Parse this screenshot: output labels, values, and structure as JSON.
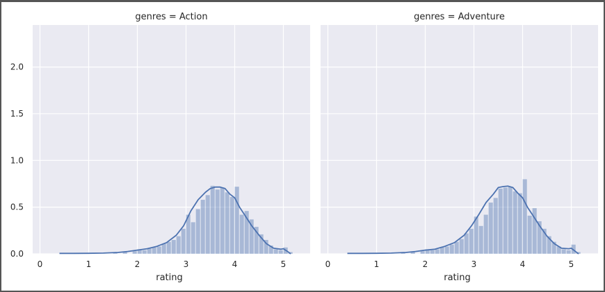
{
  "chart_data": {
    "type": "facet-histogram-kde",
    "facet_variable": "genres",
    "xlabel": "rating",
    "ylabel": "",
    "xlim": [
      -0.15,
      5.55
    ],
    "ylim": [
      0,
      2.45
    ],
    "xticks": [
      0,
      1,
      2,
      3,
      4,
      5
    ],
    "yticks": [
      0.0,
      0.5,
      1.0,
      1.5,
      2.0
    ],
    "grid": true,
    "style": "seaborn-darkgrid",
    "bin_width": 0.1,
    "colors": {
      "bar": "#4c72b0",
      "line": "#4c72b0",
      "background": "#eaeaf2",
      "grid": "#ffffff"
    },
    "facets": [
      {
        "title": "genres = Action",
        "bins": [
          {
            "x": 0.5,
            "y": 0.01
          },
          {
            "x": 0.6,
            "y": 0.01
          },
          {
            "x": 1.0,
            "y": 0.01
          },
          {
            "x": 1.5,
            "y": 0.02
          },
          {
            "x": 1.7,
            "y": 0.02
          },
          {
            "x": 1.9,
            "y": 0.03
          },
          {
            "x": 2.0,
            "y": 0.05
          },
          {
            "x": 2.1,
            "y": 0.04
          },
          {
            "x": 2.2,
            "y": 0.06
          },
          {
            "x": 2.3,
            "y": 0.07
          },
          {
            "x": 2.4,
            "y": 0.08
          },
          {
            "x": 2.5,
            "y": 0.11
          },
          {
            "x": 2.6,
            "y": 0.13
          },
          {
            "x": 2.7,
            "y": 0.15
          },
          {
            "x": 2.8,
            "y": 0.19
          },
          {
            "x": 2.9,
            "y": 0.27
          },
          {
            "x": 3.0,
            "y": 0.42
          },
          {
            "x": 3.1,
            "y": 0.34
          },
          {
            "x": 3.2,
            "y": 0.48
          },
          {
            "x": 3.3,
            "y": 0.58
          },
          {
            "x": 3.4,
            "y": 0.63
          },
          {
            "x": 3.5,
            "y": 0.73
          },
          {
            "x": 3.6,
            "y": 0.69
          },
          {
            "x": 3.7,
            "y": 0.71
          },
          {
            "x": 3.8,
            "y": 0.66
          },
          {
            "x": 3.9,
            "y": 0.61
          },
          {
            "x": 4.0,
            "y": 0.72
          },
          {
            "x": 4.1,
            "y": 0.42
          },
          {
            "x": 4.2,
            "y": 0.46
          },
          {
            "x": 4.3,
            "y": 0.37
          },
          {
            "x": 4.4,
            "y": 0.29
          },
          {
            "x": 4.5,
            "y": 0.21
          },
          {
            "x": 4.6,
            "y": 0.15
          },
          {
            "x": 4.7,
            "y": 0.09
          },
          {
            "x": 4.8,
            "y": 0.05
          },
          {
            "x": 4.9,
            "y": 0.04
          },
          {
            "x": 5.0,
            "y": 0.07
          },
          {
            "x": 5.1,
            "y": 0.02
          }
        ],
        "kde": [
          {
            "x": 0.4,
            "y": 0.005
          },
          {
            "x": 0.7,
            "y": 0.005
          },
          {
            "x": 1.0,
            "y": 0.006
          },
          {
            "x": 1.3,
            "y": 0.008
          },
          {
            "x": 1.6,
            "y": 0.015
          },
          {
            "x": 1.8,
            "y": 0.025
          },
          {
            "x": 2.0,
            "y": 0.04
          },
          {
            "x": 2.2,
            "y": 0.055
          },
          {
            "x": 2.4,
            "y": 0.08
          },
          {
            "x": 2.6,
            "y": 0.12
          },
          {
            "x": 2.8,
            "y": 0.2
          },
          {
            "x": 2.95,
            "y": 0.3
          },
          {
            "x": 3.1,
            "y": 0.46
          },
          {
            "x": 3.25,
            "y": 0.58
          },
          {
            "x": 3.4,
            "y": 0.66
          },
          {
            "x": 3.5,
            "y": 0.7
          },
          {
            "x": 3.6,
            "y": 0.715
          },
          {
            "x": 3.7,
            "y": 0.715
          },
          {
            "x": 3.8,
            "y": 0.7
          },
          {
            "x": 3.9,
            "y": 0.64
          },
          {
            "x": 4.0,
            "y": 0.6
          },
          {
            "x": 4.1,
            "y": 0.5
          },
          {
            "x": 4.2,
            "y": 0.42
          },
          {
            "x": 4.35,
            "y": 0.3
          },
          {
            "x": 4.5,
            "y": 0.2
          },
          {
            "x": 4.65,
            "y": 0.11
          },
          {
            "x": 4.8,
            "y": 0.06
          },
          {
            "x": 4.95,
            "y": 0.05
          },
          {
            "x": 5.0,
            "y": 0.055
          },
          {
            "x": 5.1,
            "y": 0.02
          },
          {
            "x": 5.15,
            "y": 0.0
          }
        ]
      },
      {
        "title": "genres = Adventure",
        "bins": [
          {
            "x": 0.5,
            "y": 0.01
          },
          {
            "x": 1.0,
            "y": 0.01
          },
          {
            "x": 1.5,
            "y": 0.02
          },
          {
            "x": 1.7,
            "y": 0.02
          },
          {
            "x": 1.9,
            "y": 0.03
          },
          {
            "x": 2.0,
            "y": 0.05
          },
          {
            "x": 2.1,
            "y": 0.04
          },
          {
            "x": 2.2,
            "y": 0.05
          },
          {
            "x": 2.3,
            "y": 0.07
          },
          {
            "x": 2.4,
            "y": 0.08
          },
          {
            "x": 2.5,
            "y": 0.1
          },
          {
            "x": 2.6,
            "y": 0.13
          },
          {
            "x": 2.7,
            "y": 0.16
          },
          {
            "x": 2.8,
            "y": 0.22
          },
          {
            "x": 2.9,
            "y": 0.27
          },
          {
            "x": 3.0,
            "y": 0.4
          },
          {
            "x": 3.1,
            "y": 0.3
          },
          {
            "x": 3.2,
            "y": 0.42
          },
          {
            "x": 3.3,
            "y": 0.55
          },
          {
            "x": 3.4,
            "y": 0.6
          },
          {
            "x": 3.5,
            "y": 0.7
          },
          {
            "x": 3.6,
            "y": 0.71
          },
          {
            "x": 3.7,
            "y": 0.72
          },
          {
            "x": 3.8,
            "y": 0.67
          },
          {
            "x": 3.9,
            "y": 0.65
          },
          {
            "x": 4.0,
            "y": 0.8
          },
          {
            "x": 4.1,
            "y": 0.41
          },
          {
            "x": 4.2,
            "y": 0.49
          },
          {
            "x": 4.3,
            "y": 0.35
          },
          {
            "x": 4.4,
            "y": 0.27
          },
          {
            "x": 4.5,
            "y": 0.19
          },
          {
            "x": 4.6,
            "y": 0.13
          },
          {
            "x": 4.7,
            "y": 0.08
          },
          {
            "x": 4.8,
            "y": 0.05
          },
          {
            "x": 4.9,
            "y": 0.04
          },
          {
            "x": 5.0,
            "y": 0.1
          },
          {
            "x": 5.1,
            "y": 0.02
          }
        ],
        "kde": [
          {
            "x": 0.4,
            "y": 0.005
          },
          {
            "x": 0.7,
            "y": 0.005
          },
          {
            "x": 1.0,
            "y": 0.006
          },
          {
            "x": 1.3,
            "y": 0.008
          },
          {
            "x": 1.6,
            "y": 0.015
          },
          {
            "x": 1.8,
            "y": 0.025
          },
          {
            "x": 2.0,
            "y": 0.04
          },
          {
            "x": 2.2,
            "y": 0.05
          },
          {
            "x": 2.4,
            "y": 0.08
          },
          {
            "x": 2.6,
            "y": 0.12
          },
          {
            "x": 2.8,
            "y": 0.2
          },
          {
            "x": 2.95,
            "y": 0.3
          },
          {
            "x": 3.1,
            "y": 0.42
          },
          {
            "x": 3.25,
            "y": 0.55
          },
          {
            "x": 3.4,
            "y": 0.64
          },
          {
            "x": 3.5,
            "y": 0.71
          },
          {
            "x": 3.6,
            "y": 0.72
          },
          {
            "x": 3.7,
            "y": 0.725
          },
          {
            "x": 3.8,
            "y": 0.71
          },
          {
            "x": 3.9,
            "y": 0.65
          },
          {
            "x": 4.0,
            "y": 0.6
          },
          {
            "x": 4.1,
            "y": 0.5
          },
          {
            "x": 4.2,
            "y": 0.42
          },
          {
            "x": 4.35,
            "y": 0.3
          },
          {
            "x": 4.5,
            "y": 0.19
          },
          {
            "x": 4.65,
            "y": 0.11
          },
          {
            "x": 4.8,
            "y": 0.06
          },
          {
            "x": 4.95,
            "y": 0.055
          },
          {
            "x": 5.0,
            "y": 0.06
          },
          {
            "x": 5.1,
            "y": 0.02
          },
          {
            "x": 5.15,
            "y": 0.0
          }
        ]
      }
    ]
  }
}
